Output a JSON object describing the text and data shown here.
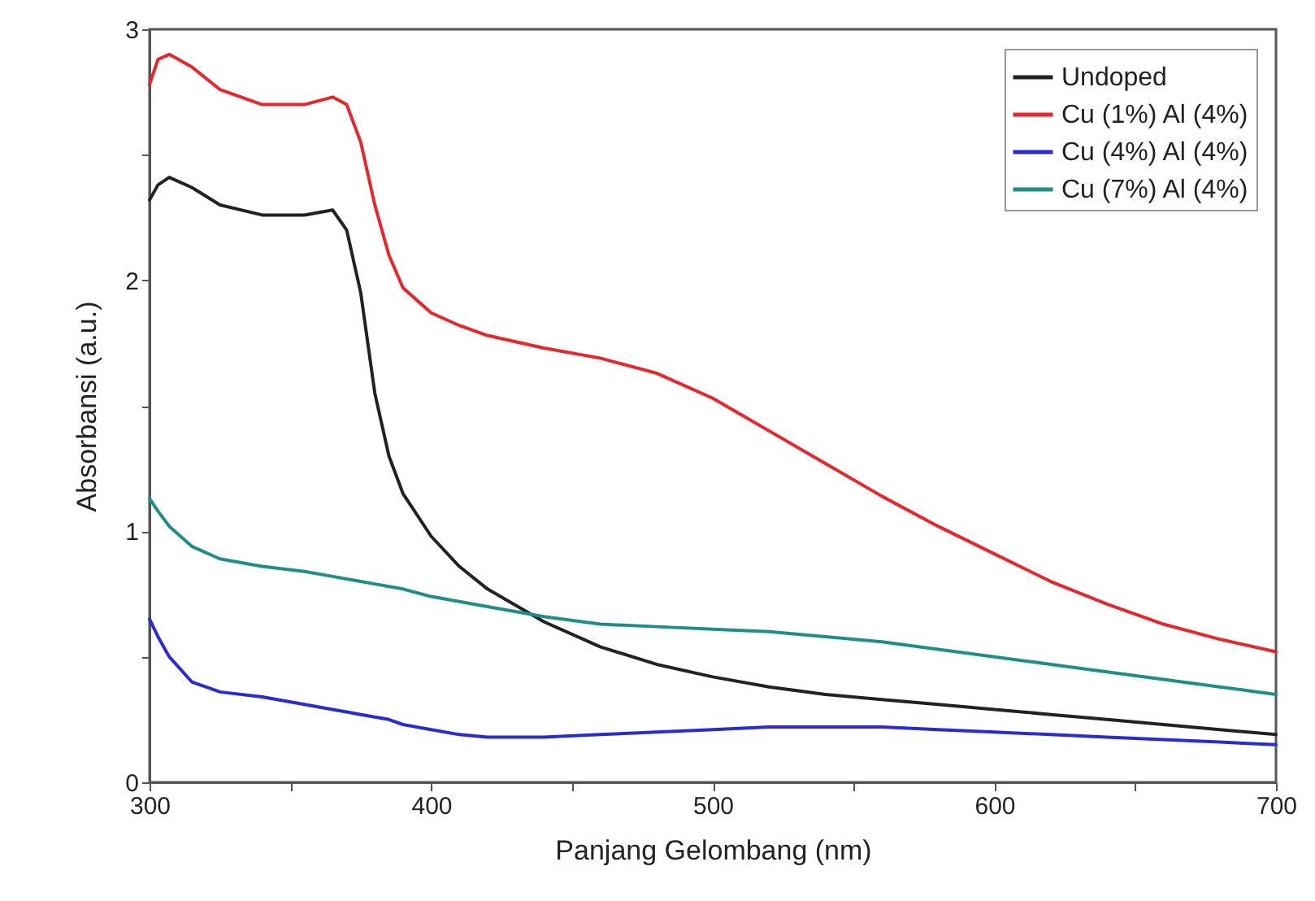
{
  "chart_data": {
    "type": "line",
    "xlabel": "Panjang Gelombang (nm)",
    "ylabel": "Absorbansi (a.u.)",
    "x": [
      300,
      303,
      307,
      315,
      325,
      340,
      355,
      365,
      370,
      375,
      380,
      385,
      390,
      400,
      410,
      420,
      440,
      460,
      480,
      500,
      520,
      540,
      560,
      580,
      600,
      620,
      640,
      660,
      680,
      700
    ],
    "series": [
      {
        "name": "Undoped",
        "color": "#222222",
        "values": [
          2.32,
          2.38,
          2.41,
          2.37,
          2.3,
          2.26,
          2.26,
          2.28,
          2.2,
          1.95,
          1.55,
          1.3,
          1.15,
          0.98,
          0.86,
          0.77,
          0.64,
          0.54,
          0.47,
          0.42,
          0.38,
          0.35,
          0.33,
          0.31,
          0.29,
          0.27,
          0.25,
          0.23,
          0.21,
          0.19
        ]
      },
      {
        "name": "Cu (1%) Al (4%)",
        "color": "#e8262b",
        "values": [
          2.78,
          2.88,
          2.9,
          2.85,
          2.76,
          2.7,
          2.7,
          2.73,
          2.7,
          2.55,
          2.3,
          2.1,
          1.97,
          1.87,
          1.82,
          1.78,
          1.73,
          1.69,
          1.63,
          1.53,
          1.4,
          1.27,
          1.14,
          1.02,
          0.91,
          0.8,
          0.71,
          0.63,
          0.57,
          0.52
        ]
      },
      {
        "name": "Cu (4%) Al (4%)",
        "color": "#2b2bd6",
        "values": [
          0.65,
          0.58,
          0.5,
          0.4,
          0.36,
          0.34,
          0.31,
          0.29,
          0.28,
          0.27,
          0.26,
          0.25,
          0.23,
          0.21,
          0.19,
          0.18,
          0.18,
          0.19,
          0.2,
          0.21,
          0.22,
          0.22,
          0.22,
          0.21,
          0.2,
          0.19,
          0.18,
          0.17,
          0.16,
          0.15
        ]
      },
      {
        "name": "Cu (7%) Al (4%)",
        "color": "#1f8f86",
        "values": [
          1.13,
          1.08,
          1.02,
          0.94,
          0.89,
          0.86,
          0.84,
          0.82,
          0.81,
          0.8,
          0.79,
          0.78,
          0.77,
          0.74,
          0.72,
          0.7,
          0.66,
          0.63,
          0.62,
          0.61,
          0.6,
          0.58,
          0.56,
          0.53,
          0.5,
          0.47,
          0.44,
          0.41,
          0.38,
          0.35
        ]
      }
    ],
    "xlim": [
      300,
      700
    ],
    "xticks": [
      300,
      {
        "value": 350,
        "label": null
      },
      400,
      {
        "value": 450,
        "label": null
      },
      500,
      {
        "value": 550,
        "label": null
      },
      600,
      {
        "value": 650,
        "label": null
      },
      700
    ],
    "ylim": [
      0,
      3
    ],
    "yticks": [
      0,
      {
        "value": 0.5,
        "label": null
      },
      1,
      {
        "value": 1.5,
        "label": null
      },
      2,
      {
        "value": 2.5,
        "label": null
      },
      3
    ],
    "legend": "top right",
    "grid": false,
    "line_style": "solid",
    "marker": "none"
  }
}
